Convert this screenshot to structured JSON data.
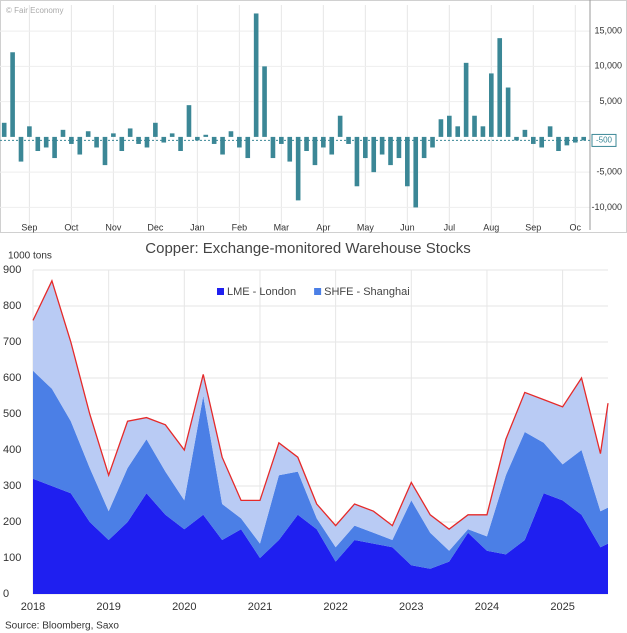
{
  "chart_data": [
    {
      "type": "bar",
      "watermark": "© Fair Economy",
      "color": "#3b8796",
      "x": [
        -0.6,
        -0.4,
        -0.2,
        0,
        0.2,
        0.4,
        0.6,
        0.8,
        1,
        1.2,
        1.4,
        1.6,
        1.8,
        2,
        2.2,
        2.4,
        2.6,
        2.8,
        3,
        3.2,
        3.4,
        3.6,
        3.8,
        4,
        4.2,
        4.4,
        4.6,
        4.8,
        5,
        5.2,
        5.4,
        5.6,
        5.8,
        6,
        6.2,
        6.4,
        6.6,
        6.8,
        7,
        7.2,
        7.4,
        7.6,
        7.8,
        8,
        8.2,
        8.4,
        8.6,
        8.8,
        9,
        9.2,
        9.4,
        9.6,
        9.8,
        10,
        10.2,
        10.4,
        10.6,
        10.8,
        11,
        11.2,
        11.4,
        11.6,
        11.8,
        12,
        12.2,
        12.4,
        12.6,
        12.8,
        13,
        13.2
      ],
      "values": [
        2000,
        12000,
        -3500,
        1500,
        -2000,
        -1500,
        -3000,
        1000,
        -1000,
        -2500,
        800,
        -1500,
        -4000,
        500,
        -2000,
        1200,
        -1000,
        -1500,
        2000,
        -800,
        500,
        -2000,
        4500,
        -500,
        300,
        -1000,
        -2500,
        800,
        -1500,
        -3000,
        17500,
        10000,
        -3000,
        -1000,
        -3500,
        -9000,
        -2000,
        -4000,
        -1500,
        -2500,
        3000,
        -1000,
        -7000,
        -3000,
        -5000,
        -2500,
        -4000,
        -3000,
        -7000,
        -10000,
        -3000,
        -1500,
        2500,
        3000,
        1500,
        10500,
        3000,
        1500,
        9000,
        14000,
        7000,
        -500,
        1000,
        -1000,
        -1500,
        1500,
        -2000,
        -1200,
        -800,
        -500
      ],
      "xlim": [
        -0.7,
        13.35
      ],
      "xticks": [
        {
          "value": 0,
          "label": "Sep"
        },
        {
          "value": 1,
          "label": "Oct"
        },
        {
          "value": 2,
          "label": "Nov"
        },
        {
          "value": 3,
          "label": "Dec"
        },
        {
          "value": 4,
          "label": "Jan"
        },
        {
          "value": 5,
          "label": "Feb"
        },
        {
          "value": 6,
          "label": "Mar"
        },
        {
          "value": 7,
          "label": "Apr"
        },
        {
          "value": 8,
          "label": "May"
        },
        {
          "value": 9,
          "label": "Jun"
        },
        {
          "value": 10,
          "label": "Jul"
        },
        {
          "value": 11,
          "label": "Aug"
        },
        {
          "value": 12,
          "label": "Sep"
        },
        {
          "value": 13,
          "label": "Oc"
        }
      ],
      "ylim": [
        -13200,
        18700
      ],
      "yticks": [
        {
          "value": 15000,
          "label": "15,000"
        },
        {
          "value": 10000,
          "label": "10,000"
        },
        {
          "value": 5000,
          "label": "5,000"
        },
        {
          "value": -5000,
          "label": "-5,000"
        },
        {
          "value": -10000,
          "label": "-10,000"
        }
      ],
      "current_value": -500,
      "grid": true
    },
    {
      "type": "stacked-area",
      "title": "Copper: Exchange-monitored Warehouse Stocks",
      "y_label": "1000 tons",
      "source": "Source: Bloomberg, Saxo",
      "x": [
        2018,
        2018.25,
        2018.5,
        2018.75,
        2019,
        2019.25,
        2019.5,
        2019.75,
        2020,
        2020.25,
        2020.5,
        2020.75,
        2021,
        2021.25,
        2021.5,
        2021.75,
        2022,
        2022.25,
        2022.5,
        2022.75,
        2023,
        2023.25,
        2023.5,
        2023.75,
        2024,
        2024.25,
        2024.5,
        2024.75,
        2025,
        2025.25,
        2025.5,
        2025.6
      ],
      "series": [
        {
          "name": "LME - London",
          "color": "#1f1ff0",
          "values": [
            320,
            300,
            280,
            200,
            150,
            200,
            280,
            220,
            180,
            220,
            150,
            180,
            100,
            150,
            220,
            180,
            90,
            150,
            140,
            130,
            80,
            70,
            90,
            170,
            120,
            110,
            150,
            280,
            260,
            220,
            130,
            140
          ]
        },
        {
          "name": "SHFE - Shanghai",
          "color": "#4b7fe6",
          "values": [
            300,
            270,
            200,
            150,
            80,
            150,
            150,
            120,
            80,
            330,
            100,
            30,
            40,
            180,
            120,
            30,
            40,
            40,
            30,
            20,
            180,
            100,
            30,
            10,
            40,
            220,
            300,
            140,
            100,
            180,
            100,
            100
          ]
        },
        {
          "color": "#b9cbf4",
          "values": [
            140,
            300,
            220,
            150,
            100,
            130,
            60,
            130,
            140,
            60,
            130,
            50,
            120,
            90,
            40,
            40,
            60,
            60,
            60,
            40,
            50,
            50,
            60,
            40,
            60,
            100,
            110,
            120,
            160,
            200,
            160,
            290
          ]
        }
      ],
      "outline_color": "#e52a2a",
      "xlim": [
        2018,
        2025.6
      ],
      "xticks": [
        2018,
        2019,
        2020,
        2021,
        2022,
        2023,
        2024,
        2025
      ],
      "ylim": [
        0,
        900
      ],
      "yticks": [
        0,
        100,
        200,
        300,
        400,
        500,
        600,
        700,
        800,
        900
      ],
      "grid": true
    }
  ]
}
